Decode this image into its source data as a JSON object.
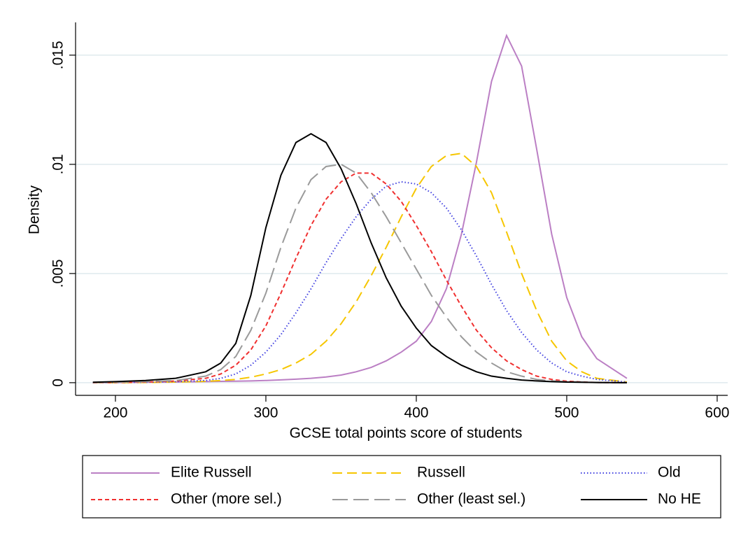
{
  "chart_data": {
    "type": "line",
    "xlabel": "GCSE total points score of students",
    "ylabel": "Density",
    "xlim": [
      173.5,
      607
    ],
    "xticks": [
      200,
      300,
      400,
      500,
      600
    ],
    "ylim": [
      -0.00058,
      0.0165
    ],
    "yticks": [
      0,
      {
        "value": 0.005,
        "label": ".005"
      },
      {
        "value": 0.01,
        "label": ".01"
      },
      {
        "value": 0.015,
        "label": ".015"
      }
    ],
    "grid": true,
    "x": [
      185,
      200,
      220,
      240,
      260,
      270,
      280,
      290,
      300,
      310,
      320,
      330,
      340,
      350,
      360,
      370,
      380,
      390,
      400,
      410,
      420,
      430,
      440,
      450,
      460,
      470,
      480,
      490,
      500,
      510,
      520,
      540
    ],
    "series": [
      {
        "name": "Elite Russell",
        "color": "#bb7fc4",
        "style": "solid",
        "values": [
          0,
          1e-05,
          2e-05,
          3e-05,
          5e-05,
          6e-05,
          7e-05,
          8e-05,
          0.0001,
          0.00013,
          0.00016,
          0.0002,
          0.00026,
          0.00035,
          0.0005,
          0.0007,
          0.001,
          0.0014,
          0.0019,
          0.0028,
          0.0043,
          0.0068,
          0.0101,
          0.0138,
          0.0159,
          0.0145,
          0.0107,
          0.0068,
          0.0039,
          0.0021,
          0.0011,
          0.0002
        ]
      },
      {
        "name": "Russell",
        "color": "#f6c600",
        "style": "dash",
        "values": [
          0,
          0,
          1e-05,
          3e-05,
          6e-05,
          0.0001,
          0.00015,
          0.00025,
          0.0004,
          0.0006,
          0.0009,
          0.0013,
          0.0019,
          0.0027,
          0.0037,
          0.0049,
          0.0062,
          0.0076,
          0.0089,
          0.0099,
          0.0104,
          0.0105,
          0.0099,
          0.0087,
          0.0069,
          0.005,
          0.0033,
          0.0019,
          0.001,
          0.0005,
          0.0002,
          3e-05
        ]
      },
      {
        "name": "Old",
        "color": "#4040e0",
        "style": "dot",
        "values": [
          0,
          1e-05,
          2e-05,
          5e-05,
          0.0001,
          0.0002,
          0.0004,
          0.0008,
          0.0014,
          0.0022,
          0.0032,
          0.0043,
          0.0055,
          0.0066,
          0.0076,
          0.0084,
          0.009,
          0.0092,
          0.0091,
          0.0087,
          0.008,
          0.007,
          0.0058,
          0.0045,
          0.0033,
          0.0023,
          0.0015,
          0.0009,
          0.0005,
          0.0003,
          0.00015,
          3e-05
        ]
      },
      {
        "name": "Other (more sel.)",
        "color": "#f03030",
        "style": "shortdash",
        "values": [
          0,
          1e-05,
          3e-05,
          8e-05,
          0.0002,
          0.0004,
          0.0008,
          0.0015,
          0.0026,
          0.0041,
          0.0057,
          0.0072,
          0.0084,
          0.0092,
          0.0096,
          0.0096,
          0.0091,
          0.0083,
          0.0072,
          0.006,
          0.0047,
          0.0035,
          0.0024,
          0.0016,
          0.001,
          0.0006,
          0.0003,
          0.00015,
          7e-05,
          3e-05,
          1e-05,
          0
        ]
      },
      {
        "name": "Other (least sel.)",
        "color": "#9a9a9a",
        "style": "longdash",
        "values": [
          1e-05,
          2e-05,
          5e-05,
          0.0001,
          0.0003,
          0.0006,
          0.0012,
          0.0024,
          0.0041,
          0.0062,
          0.008,
          0.0093,
          0.0099,
          0.01,
          0.0096,
          0.0087,
          0.0076,
          0.0064,
          0.0052,
          0.004,
          0.003,
          0.0021,
          0.0014,
          0.0009,
          0.0005,
          0.0003,
          0.00015,
          8e-05,
          4e-05,
          2e-05,
          1e-05,
          0
        ]
      },
      {
        "name": "No HE",
        "color": "#000000",
        "style": "solid",
        "values": [
          2e-05,
          5e-05,
          0.0001,
          0.0002,
          0.0005,
          0.0009,
          0.0018,
          0.004,
          0.0071,
          0.0095,
          0.011,
          0.0114,
          0.011,
          0.0098,
          0.0082,
          0.0064,
          0.0048,
          0.0035,
          0.0025,
          0.0017,
          0.0012,
          0.0008,
          0.0005,
          0.0003,
          0.0002,
          0.00012,
          8e-05,
          5e-05,
          3e-05,
          2e-05,
          1e-05,
          0
        ]
      }
    ],
    "legend": "bottom"
  }
}
